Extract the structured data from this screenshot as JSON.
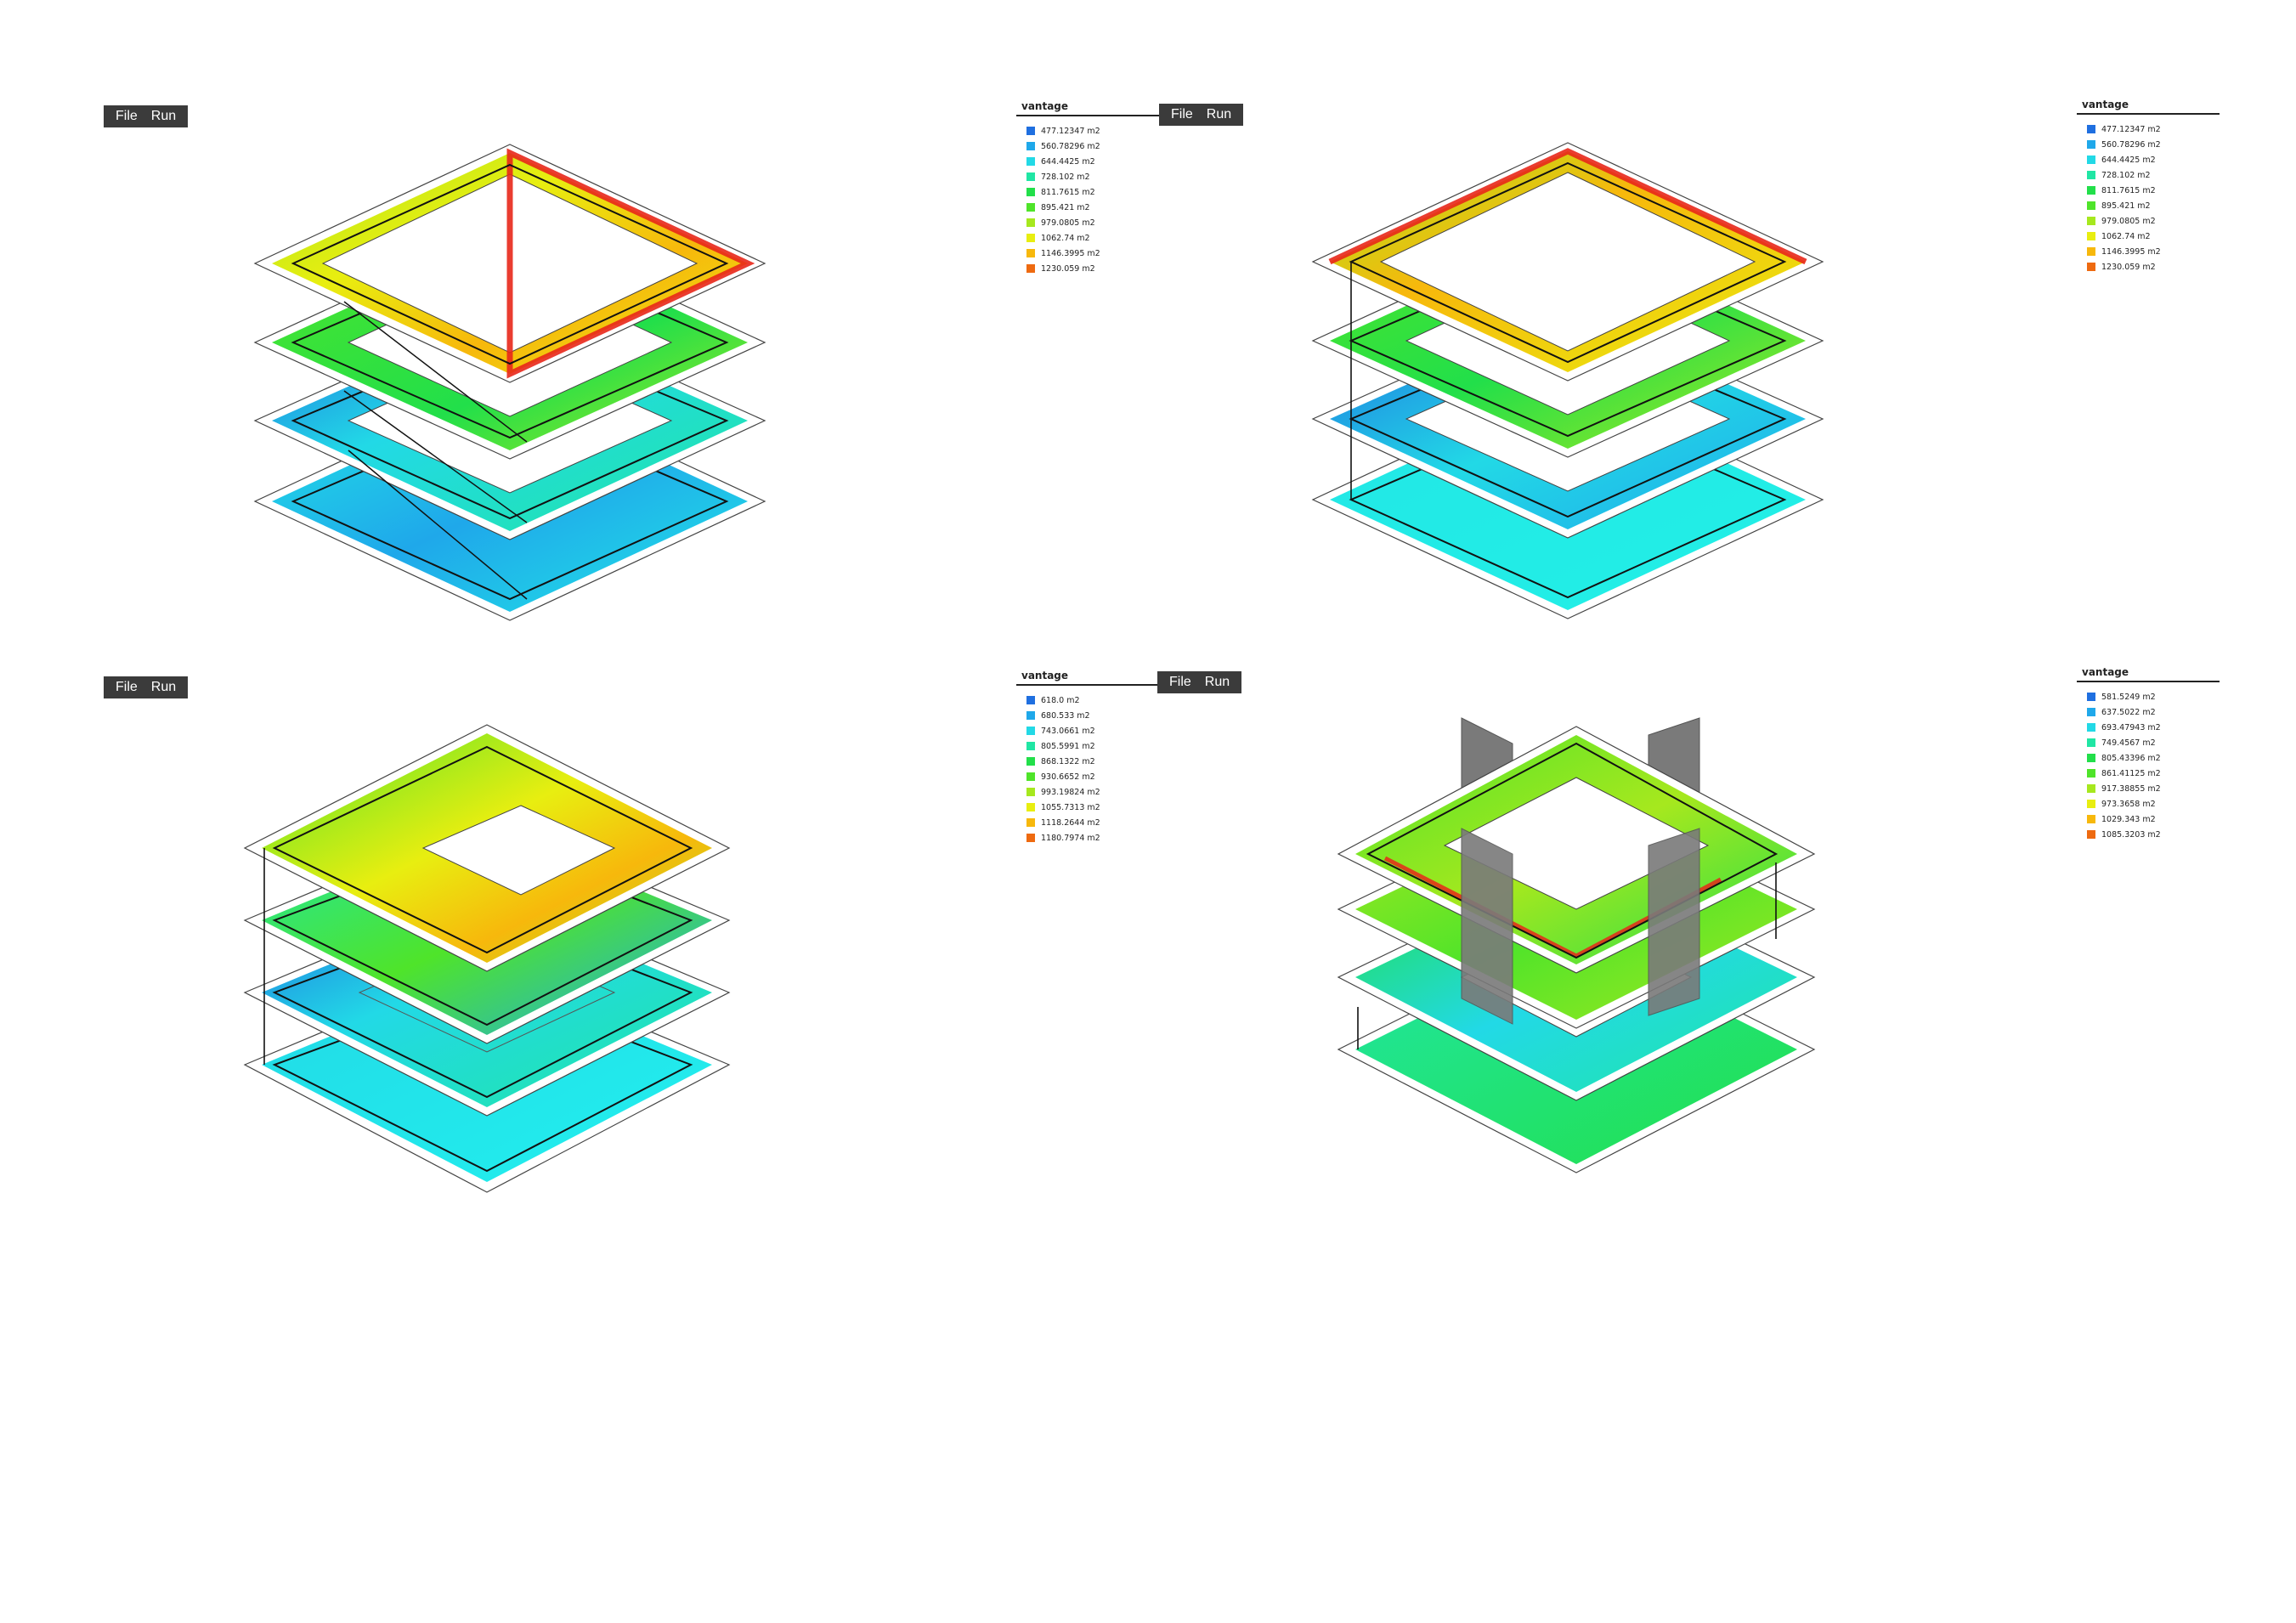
{
  "menu": {
    "file_label": "File",
    "run_label": "Run"
  },
  "panels": [
    {
      "legend_title": "vantage",
      "legend": [
        {
          "label": "477.12347 m2",
          "color": "#1f6fe0"
        },
        {
          "label": "560.78296 m2",
          "color": "#1fa8ea"
        },
        {
          "label": "644.4425 m2",
          "color": "#22d9e6"
        },
        {
          "label": "728.102 m2",
          "color": "#20e6a4"
        },
        {
          "label": "811.7615 m2",
          "color": "#22df4a"
        },
        {
          "label": "895.421 m2",
          "color": "#4fe42a"
        },
        {
          "label": "979.0805 m2",
          "color": "#a6e81e"
        },
        {
          "label": "1062.74 m2",
          "color": "#e8ee10"
        },
        {
          "label": "1146.3995 m2",
          "color": "#f7b80c"
        },
        {
          "label": "1230.059 m2",
          "color": "#ee6a10"
        }
      ]
    },
    {
      "legend_title": "vantage",
      "legend": [
        {
          "label": "477.12347 m2",
          "color": "#1f6fe0"
        },
        {
          "label": "560.78296 m2",
          "color": "#1fa8ea"
        },
        {
          "label": "644.4425 m2",
          "color": "#22d9e6"
        },
        {
          "label": "728.102 m2",
          "color": "#20e6a4"
        },
        {
          "label": "811.7615 m2",
          "color": "#22df4a"
        },
        {
          "label": "895.421 m2",
          "color": "#4fe42a"
        },
        {
          "label": "979.0805 m2",
          "color": "#a6e81e"
        },
        {
          "label": "1062.74 m2",
          "color": "#e8ee10"
        },
        {
          "label": "1146.3995 m2",
          "color": "#f7b80c"
        },
        {
          "label": "1230.059 m2",
          "color": "#ee6a10"
        }
      ]
    },
    {
      "legend_title": "vantage",
      "legend": [
        {
          "label": "618.0 m2",
          "color": "#1f6fe0"
        },
        {
          "label": "680.533 m2",
          "color": "#1fa8ea"
        },
        {
          "label": "743.0661 m2",
          "color": "#22d9e6"
        },
        {
          "label": "805.5991 m2",
          "color": "#20e6a4"
        },
        {
          "label": "868.1322 m2",
          "color": "#22df4a"
        },
        {
          "label": "930.6652 m2",
          "color": "#4fe42a"
        },
        {
          "label": "993.19824 m2",
          "color": "#a6e81e"
        },
        {
          "label": "1055.7313 m2",
          "color": "#e8ee10"
        },
        {
          "label": "1118.2644 m2",
          "color": "#f7b80c"
        },
        {
          "label": "1180.7974 m2",
          "color": "#ee6a10"
        }
      ]
    },
    {
      "legend_title": "vantage",
      "legend": [
        {
          "label": "581.5249 m2",
          "color": "#1f6fe0"
        },
        {
          "label": "637.5022 m2",
          "color": "#1fa8ea"
        },
        {
          "label": "693.47943 m2",
          "color": "#22d9e6"
        },
        {
          "label": "749.4567 m2",
          "color": "#20e6a4"
        },
        {
          "label": "805.43396 m2",
          "color": "#22df4a"
        },
        {
          "label": "861.41125 m2",
          "color": "#4fe42a"
        },
        {
          "label": "917.38855 m2",
          "color": "#a6e81e"
        },
        {
          "label": "973.3658 m2",
          "color": "#e8ee10"
        },
        {
          "label": "1029.343 m2",
          "color": "#f7b80c"
        },
        {
          "label": "1085.3203 m2",
          "color": "#ee6a10"
        }
      ]
    }
  ]
}
